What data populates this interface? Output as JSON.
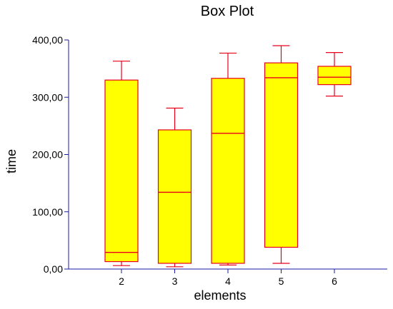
{
  "chart_data": {
    "type": "box",
    "title": "Box Plot",
    "xlabel": "elements",
    "ylabel": "time",
    "ylim": [
      0,
      400
    ],
    "y_ticks": [
      0,
      100,
      200,
      300,
      400
    ],
    "y_tick_labels": [
      "0,00",
      "100,00",
      "200,00",
      "300,00",
      "400,00"
    ],
    "categories": [
      "2",
      "3",
      "4",
      "5",
      "6"
    ],
    "boxes": [
      {
        "category": "2",
        "min": 6,
        "q1": 13,
        "median": 29,
        "q3": 330,
        "max": 363
      },
      {
        "category": "3",
        "min": 4,
        "q1": 10,
        "median": 134,
        "q3": 243,
        "max": 281
      },
      {
        "category": "4",
        "min": 7,
        "q1": 10,
        "median": 237,
        "q3": 333,
        "max": 377
      },
      {
        "category": "5",
        "min": 10,
        "q1": 38,
        "median": 334,
        "q3": 360,
        "max": 390
      },
      {
        "category": "6",
        "min": 302,
        "q1": 322,
        "median": 335,
        "q3": 354,
        "max": 378
      }
    ],
    "box_fill": "#ffff00",
    "box_stroke": "#e8001a",
    "axis_color": "#1a1aa0",
    "grid": false,
    "legend": "none"
  }
}
